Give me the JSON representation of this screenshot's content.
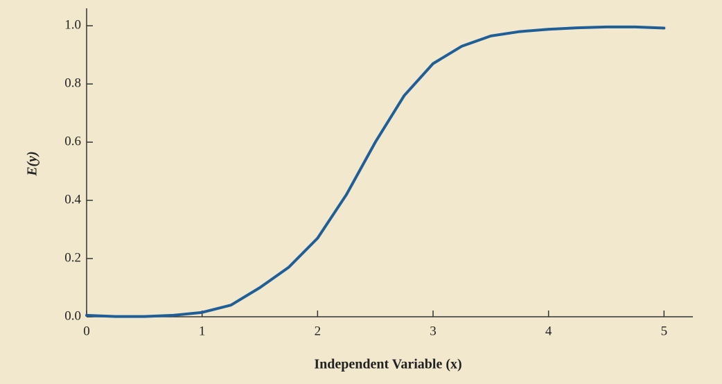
{
  "chart_data": {
    "type": "line",
    "x_label": "Independent Variable (x)",
    "y_label": "E(y)",
    "x": [
      0,
      0.25,
      0.5,
      0.75,
      1,
      1.25,
      1.5,
      1.75,
      2,
      2.25,
      2.5,
      2.75,
      3,
      3.25,
      3.5,
      3.75,
      4,
      4.25,
      4.5,
      4.75,
      5
    ],
    "series": [
      {
        "color": "#1f5e96",
        "values": [
          0.005,
          0.001,
          0.001,
          0.005,
          0.015,
          0.04,
          0.1,
          0.17,
          0.27,
          0.42,
          0.6,
          0.76,
          0.87,
          0.93,
          0.965,
          0.98,
          0.988,
          0.993,
          0.996,
          0.996,
          0.992
        ]
      }
    ],
    "xlim": [
      0,
      5.25
    ],
    "ylim": [
      0,
      1.06
    ],
    "xticks": [
      0,
      1,
      2,
      3,
      4,
      5
    ],
    "yticks": [
      {
        "value": 0,
        "label": "0.0"
      },
      {
        "value": 0.2,
        "label": "0.2"
      },
      {
        "value": 0.4,
        "label": "0.4"
      },
      {
        "value": 0.6,
        "label": "0.6"
      },
      {
        "value": 0.8,
        "label": "0.8"
      },
      {
        "value": 1,
        "label": "1.0"
      }
    ]
  }
}
